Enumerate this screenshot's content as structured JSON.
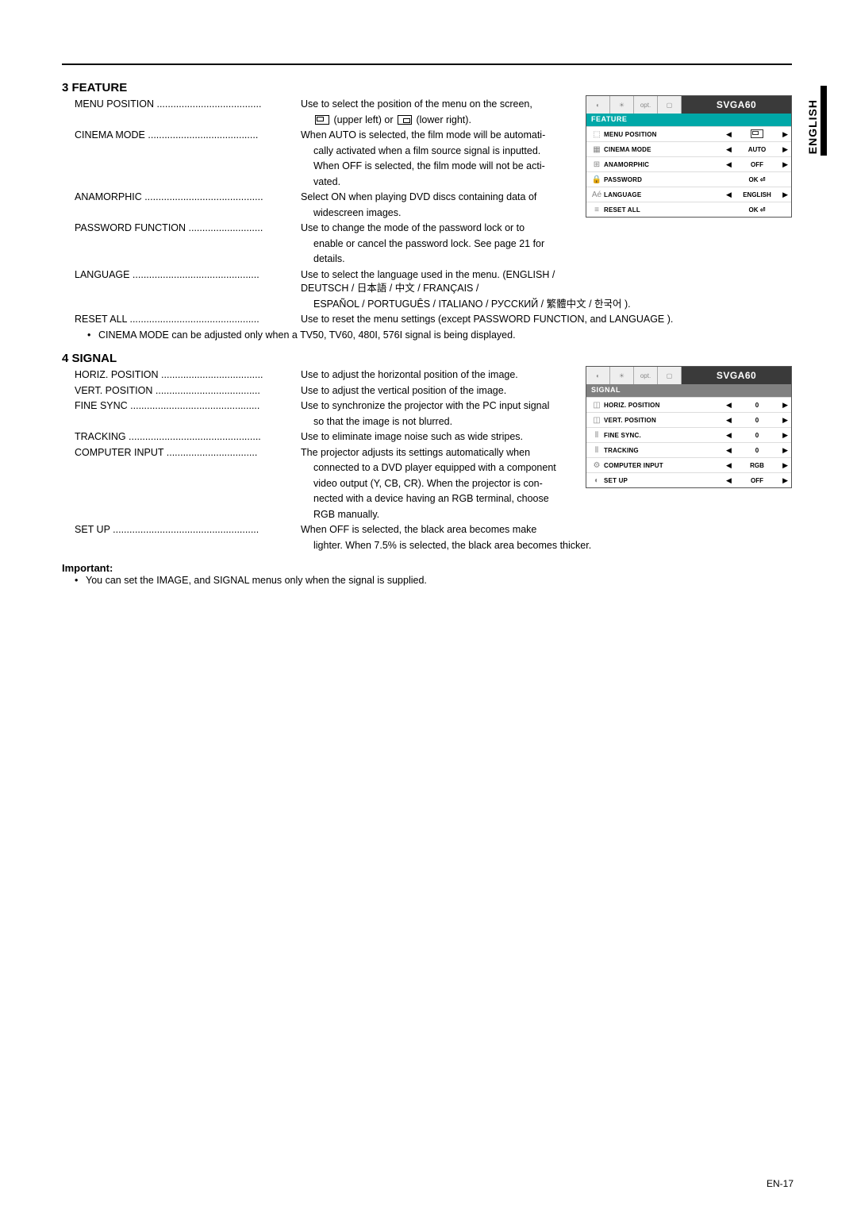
{
  "side_lang": "ENGLISH",
  "page_num": "EN-17",
  "feature": {
    "title": "3  FEATURE",
    "items": [
      {
        "label": "MENU POSITION ......................................",
        "text": "Use to select the position of the menu on the screen,",
        "cont": [
          "(upper left) or            (lower right)."
        ]
      },
      {
        "label": "CINEMA MODE ........................................",
        "text": "When AUTO is selected, the film mode will be automati-",
        "cont": [
          "cally activated when a film source signal is inputted.",
          "When OFF is selected, the film mode will not be acti-",
          "vated."
        ]
      },
      {
        "label": "ANAMORPHIC ...........................................",
        "text": "Select ON when playing DVD discs containing data of",
        "cont": [
          "widescreen images."
        ]
      },
      {
        "label": "PASSWORD FUNCTION ...........................",
        "text": "Use to change the mode of the password lock or to",
        "cont": [
          "enable or cancel the password lock. See page 21 for",
          "details."
        ]
      },
      {
        "label": "LANGUAGE ..............................................",
        "text": "Use to select the language used in the menu. (ENGLISH / DEUTSCH / 日本語 / 中文 / FRANÇAIS /",
        "cont": [
          "ESPAÑOL / PORTUGUÊS / ITALIANO / РУССКИЙ / 繁體中文 / 한국어 )."
        ]
      },
      {
        "label": "RESET ALL ...............................................",
        "text": "Use to reset the menu settings (except PASSWORD FUNCTION, and LANGUAGE ).",
        "cont": []
      }
    ],
    "bullet": "CINEMA MODE can be adjusted only when a TV50, TV60, 480I, 576I signal is being displayed."
  },
  "signal": {
    "title": "4  SIGNAL",
    "items": [
      {
        "label": "HORIZ. POSITION .....................................",
        "text": "Use to adjust the horizontal position of the image.",
        "cont": []
      },
      {
        "label": "VERT. POSITION ......................................",
        "text": "Use to adjust the vertical position of the image.",
        "cont": []
      },
      {
        "label": "FINE SYNC ...............................................",
        "text": "Use to synchronize the projector with the PC input signal",
        "cont": [
          "so that the image is not blurred."
        ]
      },
      {
        "label": "TRACKING ................................................",
        "text": "Use to eliminate image noise such as wide stripes.",
        "cont": []
      },
      {
        "label": "COMPUTER INPUT .................................",
        "text": "The projector adjusts its settings automatically when",
        "cont": [
          "connected to a DVD player equipped with a component",
          "video output (Y, CB, CR). When the projector is con-",
          "nected with a device having an RGB terminal, choose",
          "RGB manually."
        ]
      },
      {
        "label": "SET UP .....................................................",
        "text": "When OFF is selected, the black area becomes make",
        "cont": [
          "lighter. When 7.5% is selected, the black area becomes thicker."
        ]
      }
    ]
  },
  "important": {
    "title": "Important:",
    "bullet": "You can set the IMAGE, and SIGNAL menus only when the signal is supplied."
  },
  "osd_feature": {
    "resolution": "SVGA60",
    "header": "FEATURE",
    "header_bg": "#00a8a8",
    "rows": [
      {
        "icon": "⬚",
        "label": "MENU POSITION",
        "value": "",
        "arrows": true,
        "is_pos": true
      },
      {
        "icon": "▦",
        "label": "CINEMA MODE",
        "value": "AUTO",
        "arrows": true
      },
      {
        "icon": "⊞",
        "label": "ANAMORPHIC",
        "value": "OFF",
        "arrows": true
      },
      {
        "icon": "🔒",
        "label": "PASSWORD",
        "value": "OK ⏎",
        "arrows": false
      },
      {
        "icon": "Aé",
        "label": "LANGUAGE",
        "value": "ENGLISH",
        "arrows": true
      },
      {
        "icon": "≡",
        "label": "RESET ALL",
        "value": "OK ⏎",
        "arrows": false
      }
    ],
    "tabs": [
      "◐",
      "☀",
      "opt.",
      "▢"
    ]
  },
  "osd_signal": {
    "resolution": "SVGA60",
    "header": "SIGNAL",
    "header_bg": "#808080",
    "rows": [
      {
        "icon": "◫",
        "label": "HORIZ. POSITION",
        "value": "0",
        "arrows": true
      },
      {
        "icon": "◫",
        "label": "VERT. POSITION",
        "value": "0",
        "arrows": true
      },
      {
        "icon": "⫴",
        "label": "FINE SYNC.",
        "value": "0",
        "arrows": true
      },
      {
        "icon": "⫴",
        "label": "TRACKING",
        "value": "0",
        "arrows": true
      },
      {
        "icon": "⚙",
        "label": "COMPUTER INPUT",
        "value": "RGB",
        "arrows": true
      },
      {
        "icon": "◐",
        "label": "SET UP",
        "value": "OFF",
        "arrows": true
      }
    ],
    "tabs": [
      "◐",
      "☀",
      "opt.",
      "▢"
    ]
  }
}
